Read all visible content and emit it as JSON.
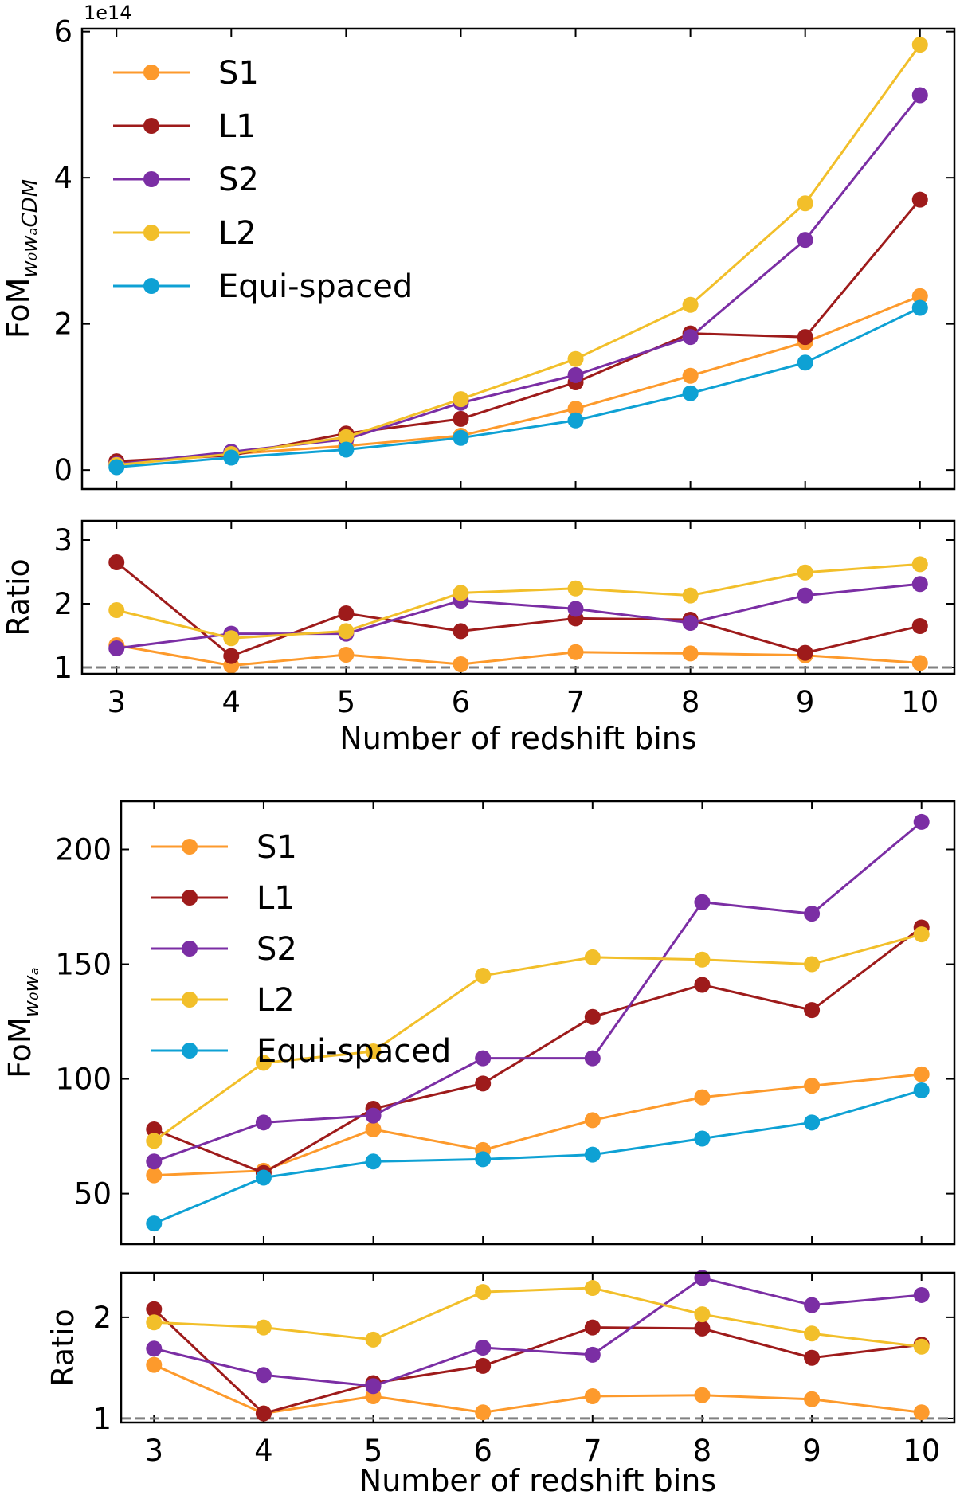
{
  "chart_data": [
    {
      "type": "line",
      "offset_text": "1e14",
      "ylabel": {
        "main": "FoM",
        "sub": "w₀wₐCDM"
      },
      "xlabel": "",
      "x": [
        3,
        4,
        5,
        6,
        7,
        8,
        9,
        10
      ],
      "xlim": [
        2.7,
        10.3
      ],
      "ylim": [
        -0.26,
        6.04
      ],
      "yticks": [
        0,
        2,
        4,
        6
      ],
      "xticks": [
        3,
        4,
        5,
        6,
        7,
        8,
        9,
        10
      ],
      "legend_position": "upper-left",
      "series": [
        {
          "name": "S1",
          "color": "#fd9a2c",
          "values": [
            0.1,
            0.22,
            0.33,
            0.47,
            0.84,
            1.29,
            1.75,
            2.38
          ]
        },
        {
          "name": "L1",
          "color": "#9e1b1b",
          "values": [
            0.12,
            0.2,
            0.5,
            0.7,
            1.2,
            1.87,
            1.82,
            3.7
          ]
        },
        {
          "name": "S2",
          "color": "#7b2ea4",
          "values": [
            0.08,
            0.25,
            0.42,
            0.92,
            1.3,
            1.82,
            3.15,
            5.13
          ]
        },
        {
          "name": "L2",
          "color": "#f2bf2a",
          "values": [
            0.07,
            0.22,
            0.45,
            0.97,
            1.52,
            2.26,
            3.65,
            5.82
          ]
        },
        {
          "name": "Equi-spaced",
          "color": "#0ea1d4",
          "values": [
            0.04,
            0.17,
            0.28,
            0.44,
            0.68,
            1.05,
            1.47,
            2.22
          ]
        }
      ]
    },
    {
      "type": "line",
      "ylabel": {
        "main": "Ratio",
        "sub": ""
      },
      "xlabel": "Number of redshift bins",
      "x": [
        3,
        4,
        5,
        6,
        7,
        8,
        9,
        10
      ],
      "xlim": [
        2.7,
        10.3
      ],
      "ylim": [
        0.9,
        3.3
      ],
      "yticks": [
        1,
        2,
        3
      ],
      "xticks": [
        3,
        4,
        5,
        6,
        7,
        8,
        9,
        10
      ],
      "reference_line": 1,
      "series": [
        {
          "color": "#fd9a2c",
          "values": [
            1.35,
            1.03,
            1.2,
            1.05,
            1.24,
            1.22,
            1.19,
            1.07
          ]
        },
        {
          "color": "#9e1b1b",
          "values": [
            2.65,
            1.18,
            1.85,
            1.57,
            1.77,
            1.75,
            1.23,
            1.65
          ]
        },
        {
          "color": "#7b2ea4",
          "values": [
            1.3,
            1.53,
            1.53,
            2.05,
            1.92,
            1.7,
            2.13,
            2.31
          ]
        },
        {
          "color": "#f2bf2a",
          "values": [
            1.9,
            1.46,
            1.57,
            2.17,
            2.24,
            2.13,
            2.49,
            2.62
          ]
        }
      ]
    },
    {
      "type": "line",
      "ylabel": {
        "main": "FoM",
        "sub": "w₀wₐ"
      },
      "xlabel": "",
      "x": [
        3,
        4,
        5,
        6,
        7,
        8,
        9,
        10
      ],
      "xlim": [
        2.7,
        10.3
      ],
      "ylim": [
        28,
        221
      ],
      "yticks": [
        50,
        100,
        150,
        200
      ],
      "xticks": [
        3,
        4,
        5,
        6,
        7,
        8,
        9,
        10
      ],
      "legend_position": "upper-left",
      "series": [
        {
          "name": "S1",
          "color": "#fd9a2c",
          "values": [
            58,
            60,
            78,
            69,
            82,
            92,
            97,
            102
          ]
        },
        {
          "name": "L1",
          "color": "#9e1b1b",
          "values": [
            78,
            59,
            87,
            98,
            127,
            141,
            130,
            166
          ]
        },
        {
          "name": "S2",
          "color": "#7b2ea4",
          "values": [
            64,
            81,
            84,
            109,
            109,
            177,
            172,
            212
          ]
        },
        {
          "name": "L2",
          "color": "#f2bf2a",
          "values": [
            73,
            107,
            112,
            145,
            153,
            152,
            150,
            163
          ]
        },
        {
          "name": "Equi-spaced",
          "color": "#0ea1d4",
          "values": [
            37,
            57,
            64,
            65,
            67,
            74,
            81,
            95
          ]
        }
      ]
    },
    {
      "type": "line",
      "ylabel": {
        "main": "Ratio",
        "sub": ""
      },
      "xlabel": "Number of redshift bins",
      "x": [
        3,
        4,
        5,
        6,
        7,
        8,
        9,
        10
      ],
      "xlim": [
        2.7,
        10.3
      ],
      "ylim": [
        0.96,
        2.44
      ],
      "yticks": [
        1,
        2
      ],
      "xticks": [
        3,
        4,
        5,
        6,
        7,
        8,
        9,
        10
      ],
      "reference_line": 1,
      "series": [
        {
          "color": "#fd9a2c",
          "values": [
            1.53,
            1.05,
            1.22,
            1.06,
            1.22,
            1.23,
            1.19,
            1.06
          ]
        },
        {
          "color": "#9e1b1b",
          "values": [
            2.08,
            1.05,
            1.35,
            1.52,
            1.9,
            1.89,
            1.6,
            1.73
          ]
        },
        {
          "color": "#7b2ea4",
          "values": [
            1.69,
            1.43,
            1.32,
            1.7,
            1.63,
            2.39,
            2.12,
            2.22
          ]
        },
        {
          "color": "#f2bf2a",
          "values": [
            1.95,
            1.9,
            1.78,
            2.25,
            2.29,
            2.03,
            1.84,
            1.71
          ]
        }
      ]
    }
  ]
}
